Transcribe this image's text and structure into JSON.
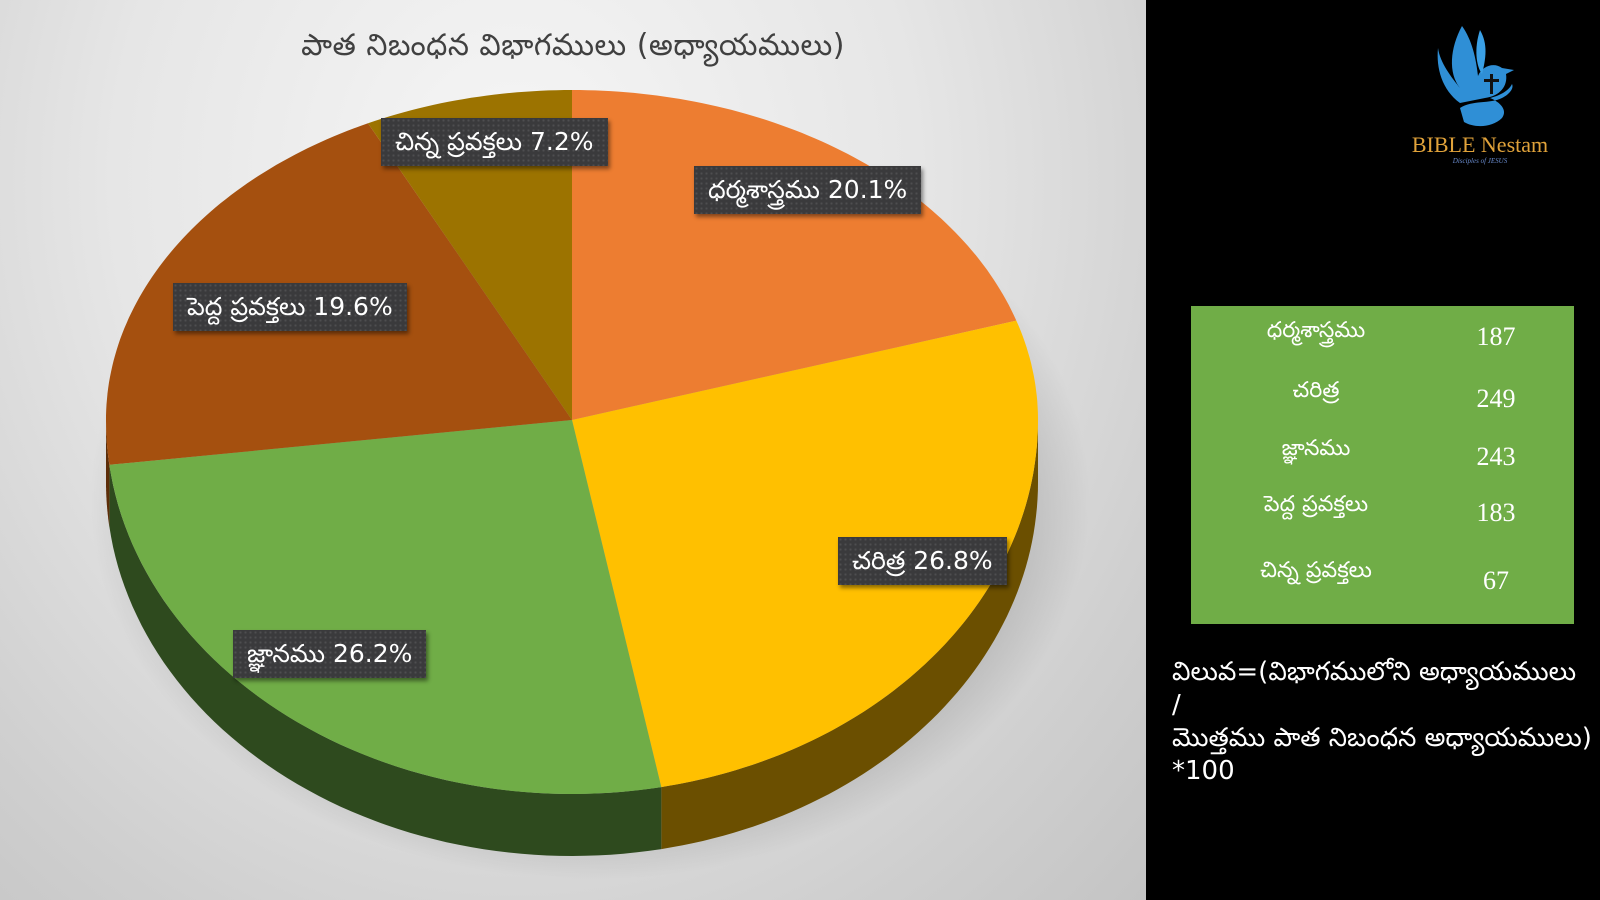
{
  "chart_data": {
    "type": "pie",
    "title": "పాత నిబంధన విభాగములు (అధ్యాయములు)",
    "categories": [
      "ధర్మశాస్త్రము",
      "చరిత్ర",
      "జ్ఞానము",
      "పెద్ద ప్రవక్తలు",
      "చిన్న ప్రవక్తలు"
    ],
    "values": [
      187,
      249,
      243,
      183,
      67
    ],
    "percentages": [
      20.1,
      26.8,
      26.2,
      19.6,
      7.2
    ],
    "colors": [
      "#ed7d31",
      "#ffc000",
      "#70ad47",
      "#a5500f",
      "#9c7300"
    ],
    "side_colors": [
      "#8a4a1a",
      "#6b4f00",
      "#2e4a1e",
      "#5c2d08",
      "#5a4300"
    ],
    "start_angle_deg": 0,
    "direction": "clockwise",
    "style": "3d",
    "data_labels": [
      "ధర్మశాస్త్రము 20.1%",
      "చరిత్ర 26.8%",
      "జ్ఞానము 26.2%",
      "పెద్ద ప్రవక్తలు 19.6%",
      "చిన్న ప్రవక్తలు 7.2%"
    ],
    "legend": "none"
  },
  "logo": {
    "name": "BIBLE Nestam",
    "tagline": "Disciples of JESUS"
  },
  "table": {
    "rows": [
      {
        "label": "ధర్మశాస్త్రము",
        "value": "187"
      },
      {
        "label": "చరిత్ర",
        "value": "249"
      },
      {
        "label": "జ్ఞానము",
        "value": "243"
      },
      {
        "label": "పెద్ద ప్రవక్తలు",
        "value": "183"
      },
      {
        "label": "చిన్న ప్రవక్తలు",
        "value": "67"
      }
    ]
  },
  "formula": {
    "line1": "విలువ=(విభాగములోని అధ్యాయములు /",
    "line2": "మొత్తము పాత నిబంధన అధ్యాయములు)",
    "line3": "*100"
  }
}
